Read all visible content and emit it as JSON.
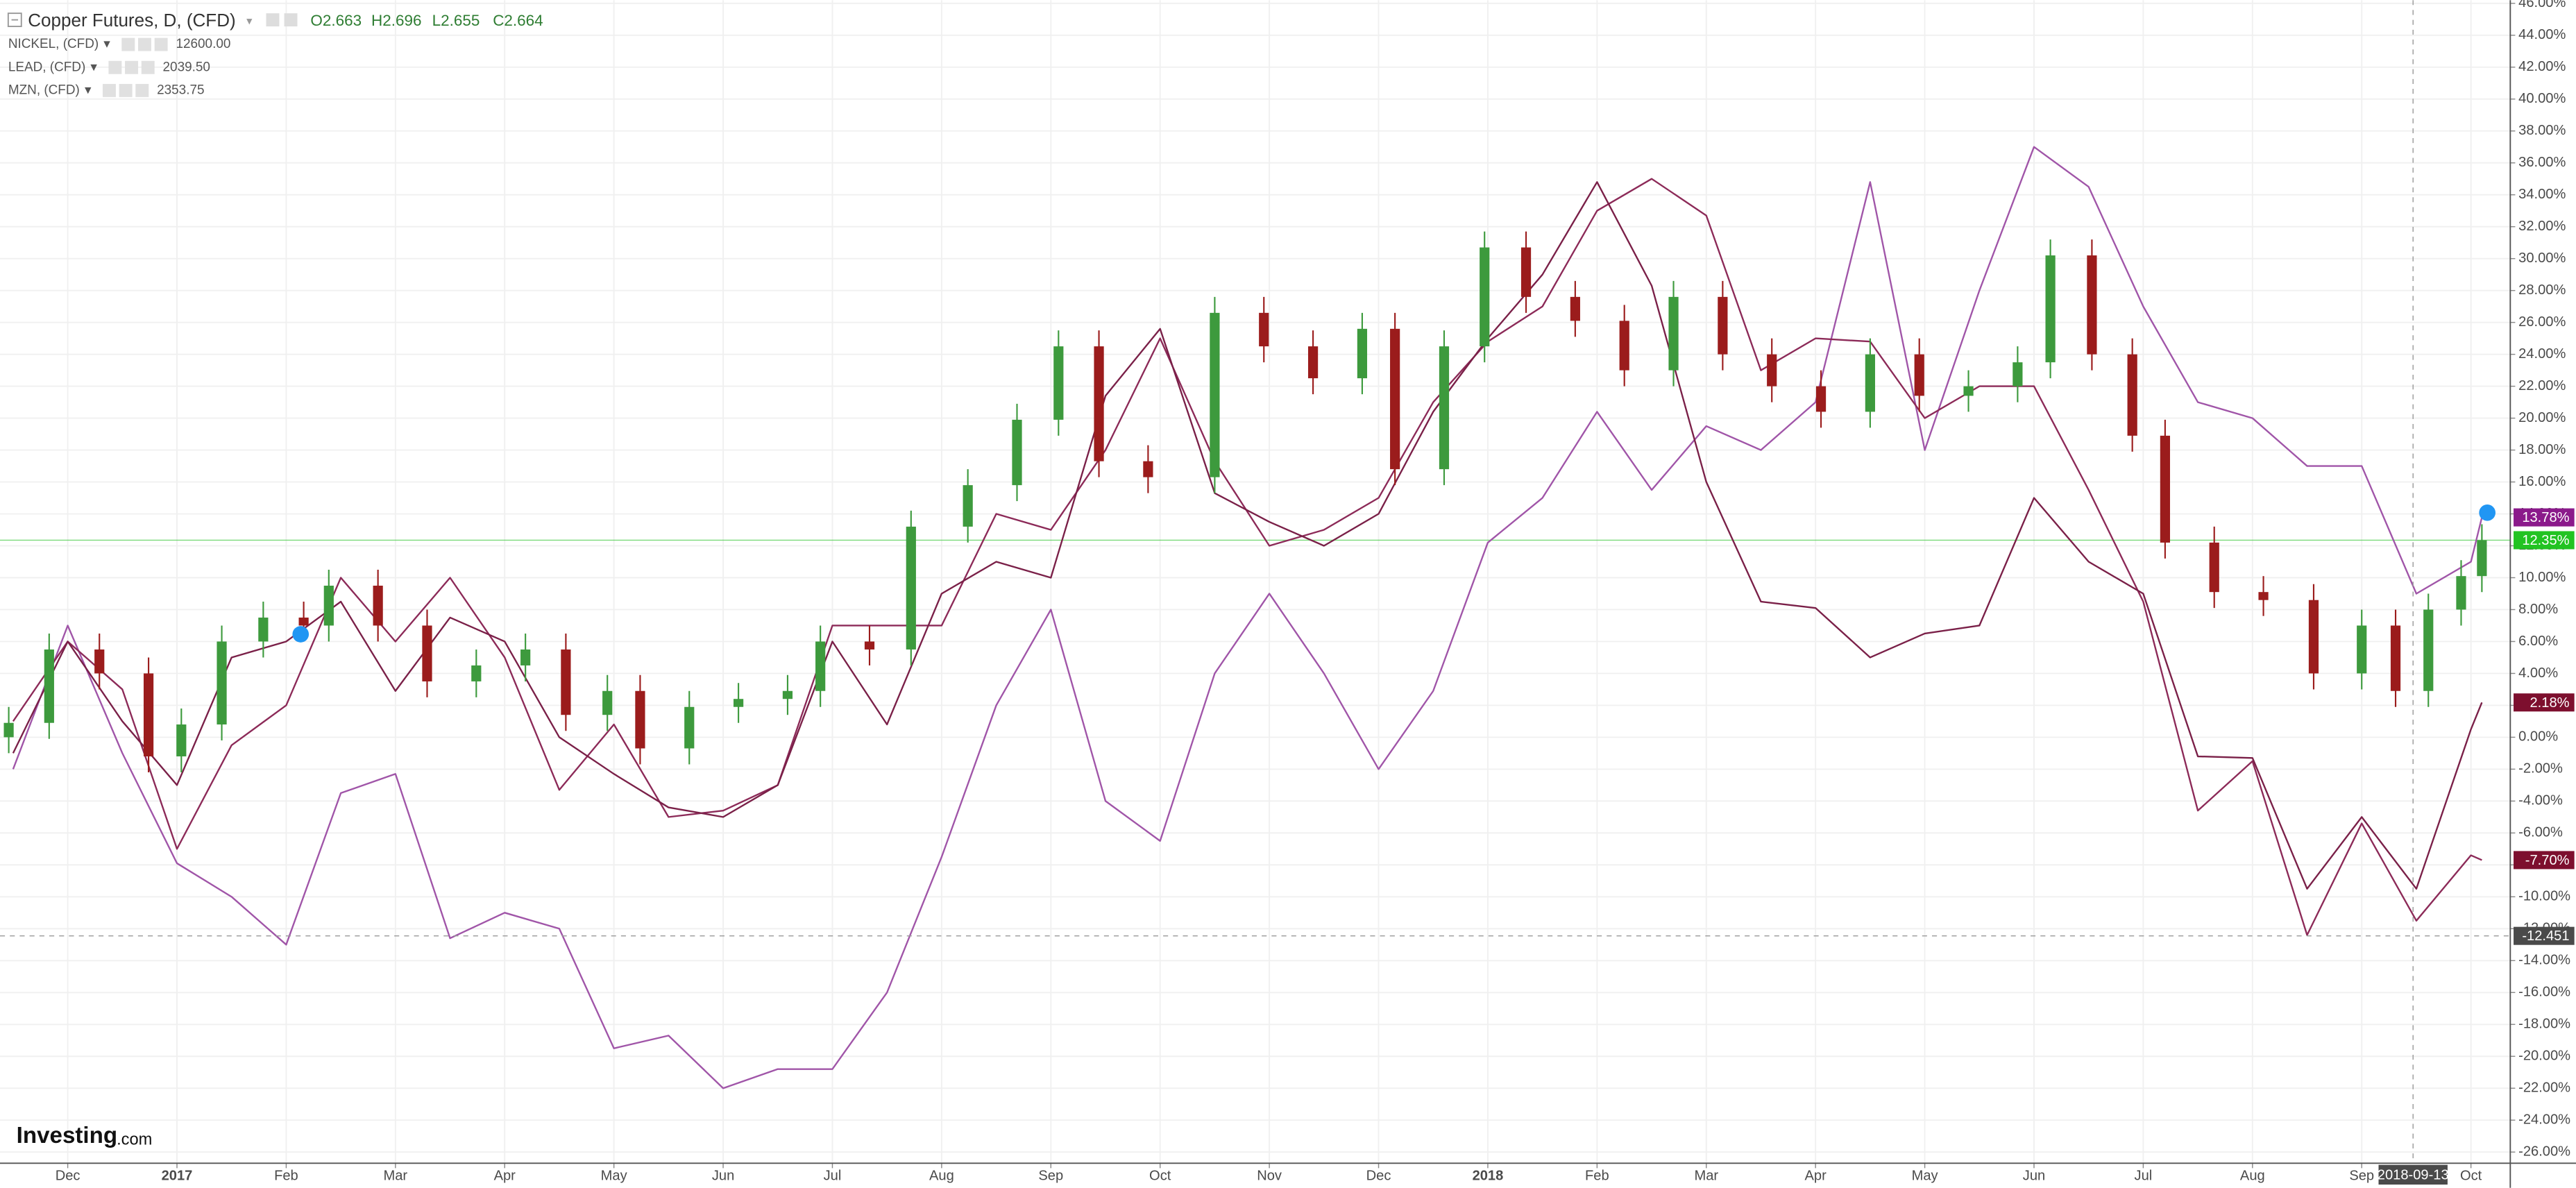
{
  "chart_data": {
    "type": "candlestick",
    "title": "Copper Futures, D, (CFD)",
    "header_values": [
      "O2.663",
      "H2.696",
      "L2.655",
      "C2.664"
    ],
    "watermark": [
      "Investing",
      ".com"
    ],
    "xlim": [
      -0.62,
      22.36
    ],
    "ylim": [
      -26.7,
      46.2
    ],
    "grid": true,
    "xticks": [
      {
        "value": 0,
        "label": "Dec"
      },
      {
        "value": 1,
        "label": "2017"
      },
      {
        "value": 2,
        "label": "Feb"
      },
      {
        "value": 3,
        "label": "Mar"
      },
      {
        "value": 4,
        "label": "Apr"
      },
      {
        "value": 5,
        "label": "May"
      },
      {
        "value": 6,
        "label": "Jun"
      },
      {
        "value": 7,
        "label": "Jul"
      },
      {
        "value": 8,
        "label": "Aug"
      },
      {
        "value": 9,
        "label": "Sep"
      },
      {
        "value": 10,
        "label": "Oct"
      },
      {
        "value": 11,
        "label": "Nov"
      },
      {
        "value": 12,
        "label": "Dec"
      },
      {
        "value": 13,
        "label": "2018"
      },
      {
        "value": 14,
        "label": "Feb"
      },
      {
        "value": 15,
        "label": "Mar"
      },
      {
        "value": 16,
        "label": "Apr"
      },
      {
        "value": 17,
        "label": "May"
      },
      {
        "value": 18,
        "label": "Jun"
      },
      {
        "value": 19,
        "label": "Jul"
      },
      {
        "value": 20,
        "label": "Aug"
      },
      {
        "value": 21,
        "label": "Sep"
      },
      {
        "value": 22,
        "label": "Oct"
      }
    ],
    "yticks": [
      {
        "value": 46,
        "label": "46.00%"
      },
      {
        "value": 44,
        "label": "44.00%"
      },
      {
        "value": 42,
        "label": "42.00%"
      },
      {
        "value": 40,
        "label": "40.00%"
      },
      {
        "value": 38,
        "label": "38.00%"
      },
      {
        "value": 36,
        "label": "36.00%"
      },
      {
        "value": 34,
        "label": "34.00%"
      },
      {
        "value": 32,
        "label": "32.00%"
      },
      {
        "value": 30,
        "label": "30.00%"
      },
      {
        "value": 28,
        "label": "28.00%"
      },
      {
        "value": 26,
        "label": "26.00%"
      },
      {
        "value": 24,
        "label": "24.00%"
      },
      {
        "value": 22,
        "label": "22.00%"
      },
      {
        "value": 20,
        "label": "20.00%"
      },
      {
        "value": 18,
        "label": "18.00%"
      },
      {
        "value": 16,
        "label": "16.00%"
      },
      {
        "value": 14,
        "label": "14.00%"
      },
      {
        "value": 12,
        "label": "12.00%"
      },
      {
        "value": 10,
        "label": "10.00%"
      },
      {
        "value": 8,
        "label": "8.00%"
      },
      {
        "value": 6,
        "label": "6.00%"
      },
      {
        "value": 4,
        "label": "4.00%"
      },
      {
        "value": 2,
        "label": "2.00%"
      },
      {
        "value": 0,
        "label": "0.00%"
      },
      {
        "value": -2,
        "label": "-2.00%"
      },
      {
        "value": -4,
        "label": "-4.00%"
      },
      {
        "value": -6,
        "label": "-6.00%"
      },
      {
        "value": -8,
        "label": "-8.00%"
      },
      {
        "value": -10,
        "label": "-10.00%"
      },
      {
        "value": -12,
        "label": "-12.00%"
      },
      {
        "value": -14,
        "label": "-14.00%"
      },
      {
        "value": -16,
        "label": "-16.00%"
      },
      {
        "value": -18,
        "label": "-18.00%"
      },
      {
        "value": -20,
        "label": "-20.00%"
      },
      {
        "value": -22,
        "label": "-22.00%"
      },
      {
        "value": -24,
        "label": "-24.00%"
      },
      {
        "value": -26,
        "label": "-26.00%"
      }
    ],
    "copper": {
      "up_color": "#3d9a3d",
      "down_color": "#9b1c1c",
      "price_color": "#22c322",
      "price_label": {
        "value": 12.35,
        "label": "12.35%"
      },
      "x": [
        -0.54,
        -0.17,
        0.29,
        0.74,
        1.04,
        1.41,
        1.79,
        2.16,
        2.39,
        2.84,
        3.29,
        3.74,
        4.19,
        4.56,
        4.94,
        5.24,
        5.69,
        6.14,
        6.59,
        6.89,
        7.34,
        7.72,
        8.24,
        8.69,
        9.07,
        9.44,
        9.89,
        10.5,
        10.95,
        11.4,
        11.85,
        12.15,
        12.6,
        12.97,
        13.35,
        13.8,
        14.25,
        14.7,
        15.15,
        15.6,
        16.05,
        16.5,
        16.95,
        17.4,
        17.85,
        18.15,
        18.53,
        18.9,
        19.2,
        19.65,
        20.1,
        20.56,
        21.0,
        21.31,
        21.61,
        21.91,
        22.1
      ],
      "open": [
        0,
        0.9,
        5.5,
        4,
        -1.2,
        0.8,
        6,
        7.5,
        7,
        9.5,
        7,
        3.5,
        4.5,
        5.5,
        1.4,
        2.9,
        -0.7,
        1.9,
        2.4,
        2.9,
        6,
        5.5,
        13.2,
        15.8,
        19.9,
        24.5,
        17.3,
        16.3,
        26.6,
        24.5,
        22.5,
        25.6,
        16.8,
        24.5,
        30.7,
        27.6,
        26.1,
        23,
        27.6,
        24,
        22,
        20.4,
        24,
        21.4,
        22,
        23.5,
        30.2,
        24,
        18.9,
        12.2,
        9.1,
        8.6,
        4,
        7,
        2.9,
        8,
        10.1
      ],
      "high": [
        1.9,
        6.5,
        6.5,
        5,
        1.8,
        7,
        8.5,
        8.5,
        10.5,
        10.5,
        8,
        5.5,
        6.5,
        6.5,
        3.9,
        3.9,
        2.9,
        3.4,
        3.9,
        7,
        7,
        14.2,
        16.8,
        20.9,
        25.5,
        25.5,
        18.3,
        27.6,
        27.6,
        25.5,
        26.6,
        26.6,
        25.5,
        31.7,
        31.7,
        28.6,
        27.1,
        28.6,
        28.6,
        25,
        23,
        25,
        25,
        23,
        24.5,
        31.2,
        31.2,
        25,
        19.9,
        13.2,
        10.1,
        9.6,
        8,
        8,
        9,
        11.1,
        13.35
      ],
      "low": [
        -1,
        -0.1,
        3,
        -2.2,
        -2.2,
        -0.2,
        5,
        6,
        6,
        6,
        2.5,
        2.5,
        3.5,
        0.4,
        0.4,
        -1.7,
        -1.7,
        0.9,
        1.4,
        1.9,
        4.5,
        4.5,
        12.2,
        14.8,
        18.9,
        16.3,
        15.3,
        15.3,
        23.5,
        21.5,
        21.5,
        15.8,
        15.8,
        23.5,
        26.6,
        25.1,
        22,
        22,
        23,
        21,
        19.4,
        19.4,
        20.4,
        20.4,
        21,
        22.5,
        23,
        17.9,
        11.2,
        8.1,
        7.6,
        3,
        3,
        1.9,
        1.9,
        7,
        9.1
      ],
      "close": [
        0.9,
        5.5,
        4,
        -1.2,
        0.8,
        6,
        7.5,
        7,
        9.5,
        7,
        3.5,
        4.5,
        5.5,
        1.4,
        2.9,
        -0.7,
        1.9,
        2.4,
        2.9,
        6,
        5.5,
        13.2,
        15.8,
        19.9,
        24.5,
        17.3,
        16.3,
        26.6,
        24.5,
        22.5,
        25.6,
        16.8,
        24.5,
        30.7,
        27.6,
        26.1,
        23,
        27.6,
        24,
        22,
        20.4,
        24,
        21.4,
        22,
        23.5,
        30.2,
        24,
        18.9,
        12.2,
        9.1,
        8.6,
        4,
        7,
        2.9,
        8,
        10.1,
        12.35
      ]
    },
    "x": [
      -0.5,
      0,
      0.5,
      1,
      1.5,
      2,
      2.5,
      3,
      3.5,
      4,
      4.5,
      5,
      5.5,
      6,
      6.5,
      7,
      7.5,
      8,
      8.5,
      9,
      9.5,
      10,
      10.5,
      11,
      11.5,
      12,
      12.5,
      13,
      13.5,
      14,
      14.5,
      15,
      15.5,
      16,
      16.5,
      17,
      17.5,
      18,
      18.5,
      19,
      19.5,
      20,
      20.5,
      21,
      21.5,
      22,
      22.1
    ],
    "series": [
      {
        "name": "NICKEL, (CFD)",
        "last": "12600.00",
        "color": "#a055a8",
        "label_color": "#7b1f7b",
        "price_label": {
          "value": 13.78,
          "label": "13.78%"
        },
        "badge_color": "#8b1a8b",
        "values": [
          -2,
          7,
          -1,
          -7.9,
          -10,
          -13,
          -3.5,
          -2.3,
          -12.6,
          -11,
          -12,
          -19.5,
          -18.7,
          -22,
          -20.8,
          -20.8,
          -16,
          -7.5,
          2,
          8,
          -4,
          -6.5,
          4,
          9,
          4,
          -2,
          2.9,
          12.2,
          15,
          20.4,
          15.5,
          19.5,
          18,
          21,
          34.8,
          18,
          28,
          37,
          34.5,
          27,
          21,
          20,
          17,
          17,
          9,
          11,
          13.78
        ]
      },
      {
        "name": "LEAD, (CFD)",
        "last": "2039.50",
        "color": "#8c2a58",
        "label_color": "#8b1a3a",
        "price_label": {
          "value": -7.7,
          "label": "-7.70%"
        },
        "badge_color": "#7d0f2e",
        "values": [
          1,
          6,
          3,
          -7,
          -0.5,
          2,
          10,
          6,
          10,
          5,
          -3.3,
          0.8,
          -5,
          -4.6,
          -3,
          7,
          7,
          7,
          14,
          13,
          18,
          25,
          17.3,
          12,
          13,
          15,
          21,
          24.8,
          27,
          33,
          35,
          32.7,
          23,
          25,
          24.8,
          20,
          22,
          22,
          15.5,
          8.5,
          -4.6,
          -1.5,
          -12.4,
          -5.4,
          -11.5,
          -7.4,
          -7.7
        ]
      },
      {
        "name": "MZN, (CFD)",
        "last": "2353.75",
        "color": "#7a2048",
        "label_color": "#7a1535",
        "price_label": {
          "value": 2.18,
          "label": "2.18%"
        },
        "badge_color": "#7d0f2e",
        "values": [
          -1,
          6,
          1,
          -3,
          5,
          6,
          8.5,
          2.9,
          7.5,
          6,
          0,
          -2.3,
          -4.4,
          -5,
          -3,
          6,
          0.8,
          9,
          11,
          10,
          21.4,
          25.6,
          15.3,
          13.5,
          12,
          14,
          20.4,
          25,
          29,
          34.8,
          28.3,
          16,
          8.5,
          8.1,
          5,
          6.5,
          7,
          15,
          11,
          9,
          -1.2,
          -1.3,
          -9.5,
          -5,
          -9.5,
          0.5,
          2.18
        ]
      }
    ],
    "crosshair": {
      "x": 21.47,
      "x_label": "2018-09-13",
      "y": -12.451
    }
  }
}
